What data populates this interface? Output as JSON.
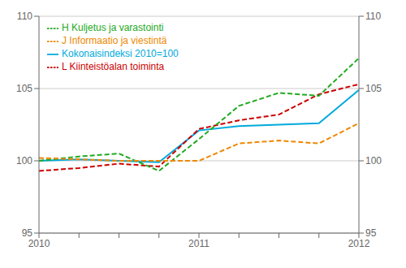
{
  "chart_data": {
    "type": "line",
    "categories": [
      "2010",
      null,
      null,
      null,
      "2011",
      null,
      null,
      null,
      "2012"
    ],
    "series": [
      {
        "name": "Kokonaisindeksi 2010=100",
        "color": "#00aadd",
        "line_style": "solid",
        "values": [
          100.0,
          100.1,
          100.0,
          99.9,
          102.1,
          102.4,
          102.5,
          102.6,
          104.9
        ]
      },
      {
        "name": "L Kiinteistöalan toiminta",
        "color": "#cc0000",
        "line_style": "dashed",
        "values": [
          99.3,
          99.5,
          99.8,
          99.6,
          102.2,
          102.8,
          103.2,
          104.6,
          105.3
        ]
      },
      {
        "name": "H Kuljetus ja varastointi",
        "color": "#22aa22",
        "line_style": "dashed",
        "values": [
          100.0,
          100.3,
          100.5,
          99.3,
          101.5,
          103.8,
          104.7,
          104.5,
          107.1
        ]
      },
      {
        "name": "J Informaatio ja viestintä",
        "color": "#ee8800",
        "line_style": "dashed",
        "values": [
          100.2,
          100.1,
          100.0,
          100.0,
          100.0,
          101.2,
          101.4,
          101.2,
          102.6
        ]
      }
    ],
    "ylim": [
      95,
      110
    ],
    "yticks": [
      95,
      100,
      105,
      110
    ],
    "y2lim": [
      95,
      110
    ],
    "y2ticks": [
      95,
      100,
      105,
      110
    ],
    "grid": true,
    "legend": "upper left"
  }
}
